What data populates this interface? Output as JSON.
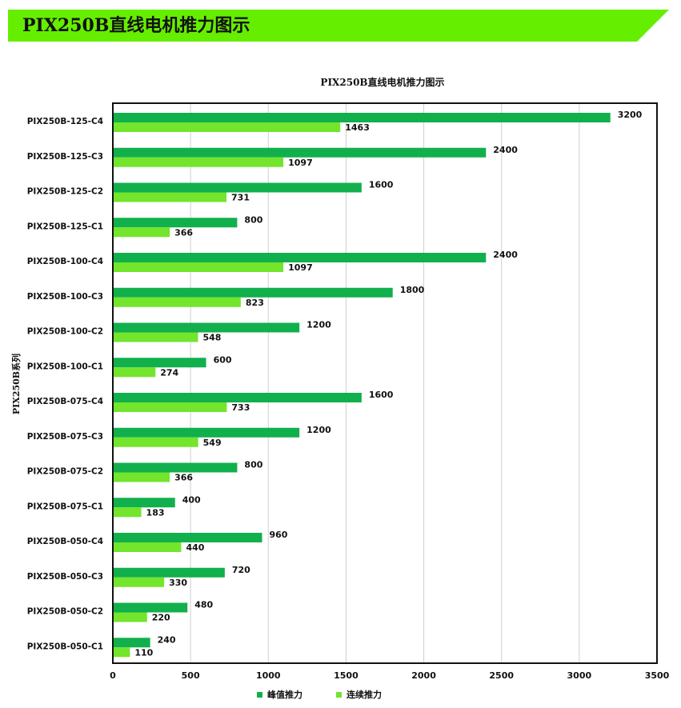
{
  "page": {
    "header_title": "PIX250B直线电机推力图示"
  },
  "colors": {
    "banner": "#66ee00",
    "peak": "#11b04c",
    "continuous": "#72e52c"
  },
  "chart_data": {
    "type": "bar",
    "orientation": "horizontal",
    "title": "PIX250B直线电机推力图示",
    "ylabel": "PIX250B系列",
    "xlabel": "",
    "xlim": [
      0,
      3500
    ],
    "xticks": [
      "0",
      "500",
      "1000",
      "1500",
      "2000",
      "2500",
      "3000",
      "3500"
    ],
    "grid": true,
    "legend_position": "bottom",
    "categories": [
      "PIX250B-125-C4",
      "PIX250B-125-C3",
      "PIX250B-125-C2",
      "PIX250B-125-C1",
      "PIX250B-100-C4",
      "PIX250B-100-C3",
      "PIX250B-100-C2",
      "PIX250B-100-C1",
      "PIX250B-075-C4",
      "PIX250B-075-C3",
      "PIX250B-075-C2",
      "PIX250B-075-C1",
      "PIX250B-050-C4",
      "PIX250B-050-C3",
      "PIX250B-050-C2",
      "PIX250B-050-C1"
    ],
    "series": [
      {
        "name": "峰值推力",
        "values": [
          3200,
          2400,
          1600,
          800,
          2400,
          1800,
          1200,
          600,
          1600,
          1200,
          800,
          400,
          960,
          720,
          480,
          240
        ]
      },
      {
        "name": "连续推力",
        "values": [
          1463,
          1097,
          731,
          366,
          1097,
          823,
          548,
          274,
          733,
          549,
          366,
          183,
          440,
          330,
          220,
          110
        ]
      }
    ]
  }
}
